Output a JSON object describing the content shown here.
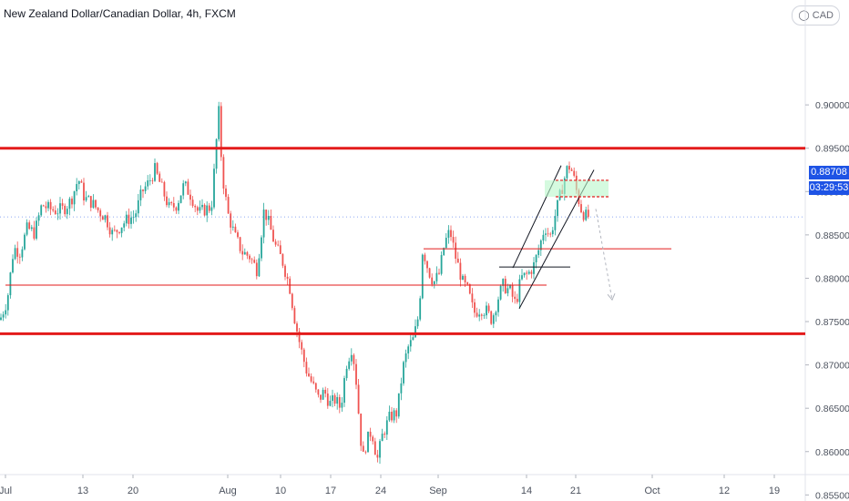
{
  "title": "New Zealand Dollar/Canadian Dollar, 4h, FXCM",
  "currency_button": "CAD",
  "last_price": "0.88708",
  "countdown": "03:29:53",
  "colors": {
    "up": "#26a69a",
    "down": "#ef5350",
    "resistance": "#e31b1b",
    "axis_text": "#4c525e",
    "price_tag": "#1e53e5"
  },
  "chart_data": {
    "type": "candlestick",
    "yaxis": {
      "ticks": [
        "0.90000",
        "0.89500",
        "0.89000",
        "0.88500",
        "0.88000",
        "0.87500",
        "0.87000",
        "0.86500",
        "0.86000",
        "0.85500"
      ],
      "ylim": [
        0.8543,
        0.9121
      ]
    },
    "xaxis": {
      "ticks": [
        "Jul",
        "13",
        "20",
        "Aug",
        "10",
        "17",
        "24",
        "Sep",
        "14",
        "21",
        "Oct",
        "12",
        "19"
      ]
    },
    "path_points": [
      [
        0,
        0.8752
      ],
      [
        8,
        0.8775
      ],
      [
        15,
        0.8835
      ],
      [
        22,
        0.883
      ],
      [
        30,
        0.8858
      ],
      [
        38,
        0.8852
      ],
      [
        46,
        0.8885
      ],
      [
        54,
        0.888
      ],
      [
        62,
        0.8878
      ],
      [
        70,
        0.888
      ],
      [
        78,
        0.889
      ],
      [
        86,
        0.8915
      ],
      [
        93,
        0.8892
      ],
      [
        100,
        0.8888
      ],
      [
        108,
        0.8878
      ],
      [
        116,
        0.887
      ],
      [
        124,
        0.885
      ],
      [
        132,
        0.886
      ],
      [
        140,
        0.8868
      ],
      [
        148,
        0.8872
      ],
      [
        156,
        0.89
      ],
      [
        163,
        0.891
      ],
      [
        170,
        0.8925
      ],
      [
        178,
        0.8903
      ],
      [
        186,
        0.888
      ],
      [
        194,
        0.8885
      ],
      [
        202,
        0.8908
      ],
      [
        210,
        0.8895
      ],
      [
        218,
        0.8875
      ],
      [
        226,
        0.888
      ],
      [
        232,
        0.8882
      ],
      [
        236,
        0.8935
      ],
      [
        240,
        0.8995
      ],
      [
        244,
        0.892
      ],
      [
        250,
        0.8875
      ],
      [
        258,
        0.8848
      ],
      [
        266,
        0.883
      ],
      [
        274,
        0.8825
      ],
      [
        282,
        0.881
      ],
      [
        290,
        0.888
      ],
      [
        296,
        0.886
      ],
      [
        302,
        0.8838
      ],
      [
        310,
        0.882
      ],
      [
        318,
        0.879
      ],
      [
        324,
        0.875
      ],
      [
        330,
        0.872
      ],
      [
        336,
        0.8695
      ],
      [
        344,
        0.8675
      ],
      [
        350,
        0.866
      ],
      [
        356,
        0.867
      ],
      [
        362,
        0.8655
      ],
      [
        368,
        0.866
      ],
      [
        374,
        0.865
      ],
      [
        380,
        0.87
      ],
      [
        386,
        0.872
      ],
      [
        390,
        0.8695
      ],
      [
        394,
        0.864
      ],
      [
        398,
        0.859
      ],
      [
        402,
        0.861
      ],
      [
        408,
        0.8625
      ],
      [
        414,
        0.859
      ],
      [
        420,
        0.862
      ],
      [
        428,
        0.864
      ],
      [
        436,
        0.8645
      ],
      [
        442,
        0.8695
      ],
      [
        448,
        0.872
      ],
      [
        454,
        0.873
      ],
      [
        460,
        0.876
      ],
      [
        464,
        0.8835
      ],
      [
        470,
        0.881
      ],
      [
        476,
        0.8795
      ],
      [
        482,
        0.8805
      ],
      [
        488,
        0.884
      ],
      [
        494,
        0.8855
      ],
      [
        500,
        0.8825
      ],
      [
        508,
        0.8795
      ],
      [
        514,
        0.8785
      ],
      [
        520,
        0.876
      ],
      [
        528,
        0.8765
      ],
      [
        534,
        0.8762
      ],
      [
        540,
        0.8752
      ],
      [
        546,
        0.8775
      ],
      [
        552,
        0.8792
      ],
      [
        560,
        0.8785
      ],
      [
        566,
        0.877
      ],
      [
        572,
        0.88
      ],
      [
        580,
        0.8805
      ],
      [
        586,
        0.8815
      ],
      [
        592,
        0.8835
      ],
      [
        598,
        0.886
      ],
      [
        604,
        0.8848
      ],
      [
        610,
        0.8875
      ],
      [
        616,
        0.89
      ],
      [
        622,
        0.8925
      ],
      [
        626,
        0.893
      ],
      [
        630,
        0.8915
      ],
      [
        634,
        0.8895
      ],
      [
        638,
        0.888
      ],
      [
        642,
        0.8872
      ],
      [
        646,
        0.8871
      ]
    ],
    "annotations": {
      "resistance_upper": 0.895,
      "resistance_lower": 0.8736,
      "support_mid": 0.8792,
      "support_sep": 0.8834,
      "short_level": 0.8813,
      "target_zone": [
        0.8894,
        0.8913
      ],
      "dashed_projection": [
        0.888,
        0.8775
      ]
    }
  }
}
